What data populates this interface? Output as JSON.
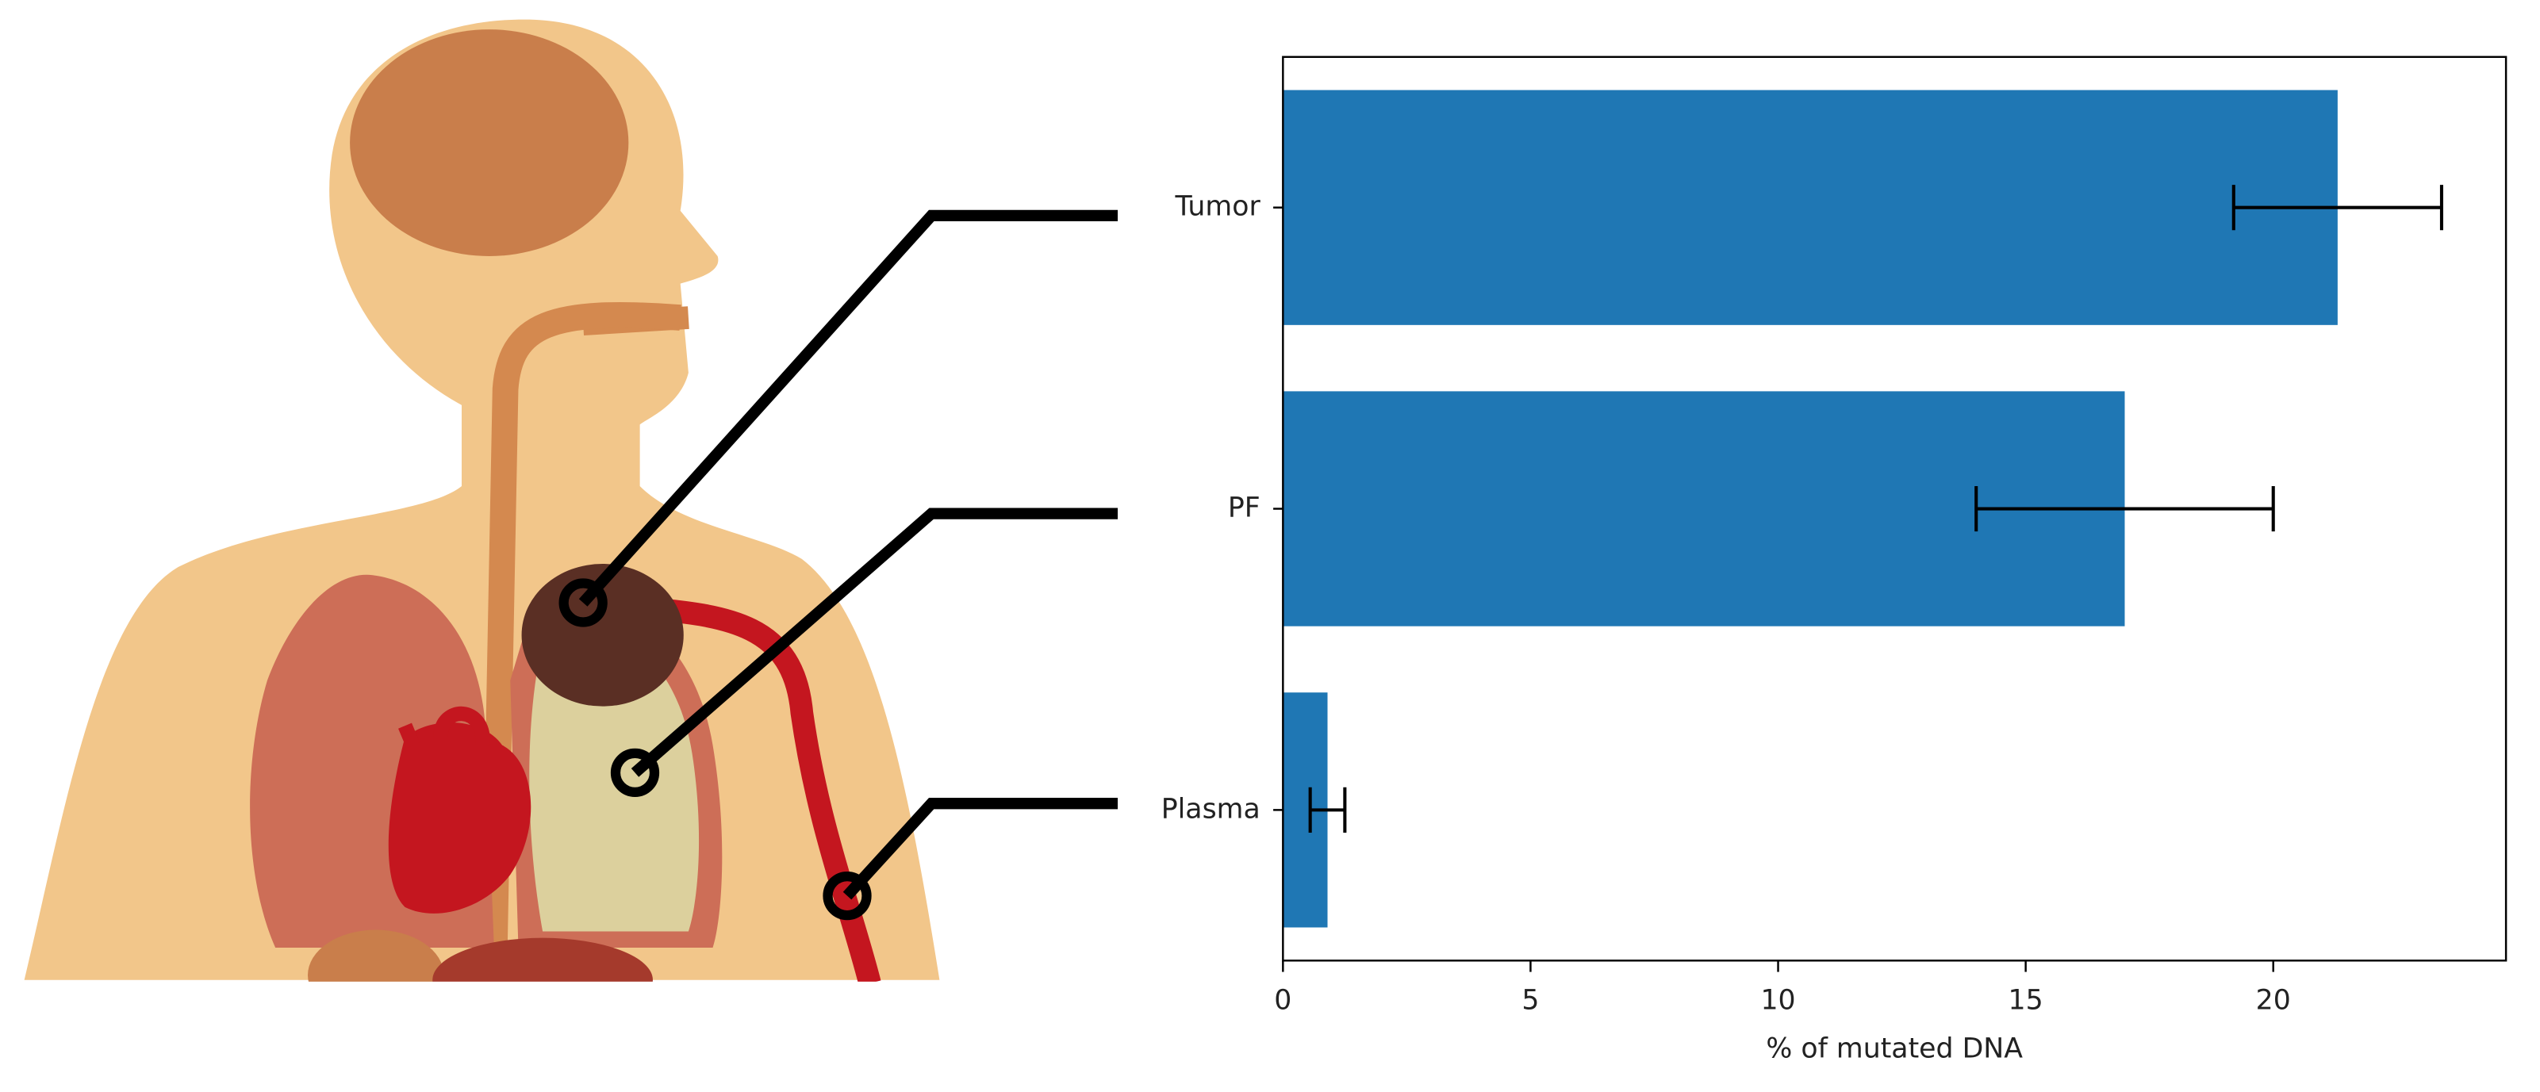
{
  "chart_data": {
    "type": "bar",
    "orientation": "horizontal",
    "categories": [
      "Tumor",
      "PF",
      "Plasma"
    ],
    "values": [
      21.3,
      17.0,
      0.9
    ],
    "errors": [
      2.1,
      3.0,
      0.35
    ],
    "color": "#1f77b4",
    "x_label": "% of mutated DNA",
    "xlim": [
      0,
      24.7
    ],
    "xticks": [
      0,
      5,
      10,
      15,
      20
    ],
    "grid": false
  }
}
